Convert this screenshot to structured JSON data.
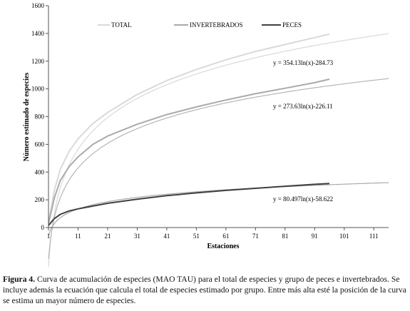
{
  "chart_data": {
    "type": "line",
    "title": "",
    "xlabel": "Estaciones",
    "ylabel": "Número estimado de especies",
    "xlim": [
      1,
      116
    ],
    "ylim": [
      0,
      1600
    ],
    "x_ticks": [
      1,
      11,
      21,
      31,
      41,
      51,
      61,
      71,
      81,
      91,
      101,
      111
    ],
    "y_ticks": [
      0,
      200,
      400,
      600,
      800,
      1000,
      1200,
      1400,
      1600
    ],
    "grid": false,
    "legend_position": "top",
    "series": [
      {
        "name": "TOTAL",
        "color": "#d9d9d9",
        "x": [
          1,
          2,
          3,
          5,
          8,
          11,
          16,
          21,
          31,
          41,
          51,
          61,
          71,
          81,
          91,
          96
        ],
        "values": [
          40,
          150,
          270,
          420,
          550,
          640,
          750,
          830,
          960,
          1060,
          1140,
          1210,
          1270,
          1320,
          1370,
          1395
        ]
      },
      {
        "name": "INVERTEBRADOS",
        "color": "#aaaaaa",
        "x": [
          1,
          2,
          3,
          5,
          8,
          11,
          16,
          21,
          31,
          41,
          51,
          61,
          71,
          81,
          91,
          96
        ],
        "values": [
          30,
          120,
          215,
          340,
          440,
          510,
          600,
          660,
          745,
          815,
          870,
          920,
          965,
          1005,
          1045,
          1070
        ]
      },
      {
        "name": "PECES",
        "color": "#404040",
        "x": [
          1,
          2,
          3,
          5,
          8,
          11,
          16,
          21,
          31,
          41,
          51,
          61,
          71,
          81,
          91,
          96
        ],
        "values": [
          15,
          40,
          65,
          95,
          120,
          135,
          155,
          175,
          205,
          230,
          250,
          268,
          283,
          298,
          312,
          318
        ]
      }
    ],
    "trendlines": [
      {
        "equation": "y = 354.13ln(x)-284.73",
        "a": 354.13,
        "b": -284.73,
        "color": "#d9d9d9"
      },
      {
        "equation": "y = 273.63ln(x)-226.11",
        "a": 273.63,
        "b": -226.11,
        "color": "#b5b5b5"
      },
      {
        "equation": "y = 80.497ln(x)-58.622",
        "a": 80.497,
        "b": -58.622,
        "color": "#aaaaaa"
      }
    ]
  },
  "caption": {
    "label": "Figura 4.",
    "text": " Curva de acumulación de especies (MAO TAU) para el total de especies y grupo de peces e invertebrados. Se incluye además la ecuación que calcula el total de especies estimado por grupo. Entre más alta esté la posición de la curva se estima un mayor número de especies."
  }
}
